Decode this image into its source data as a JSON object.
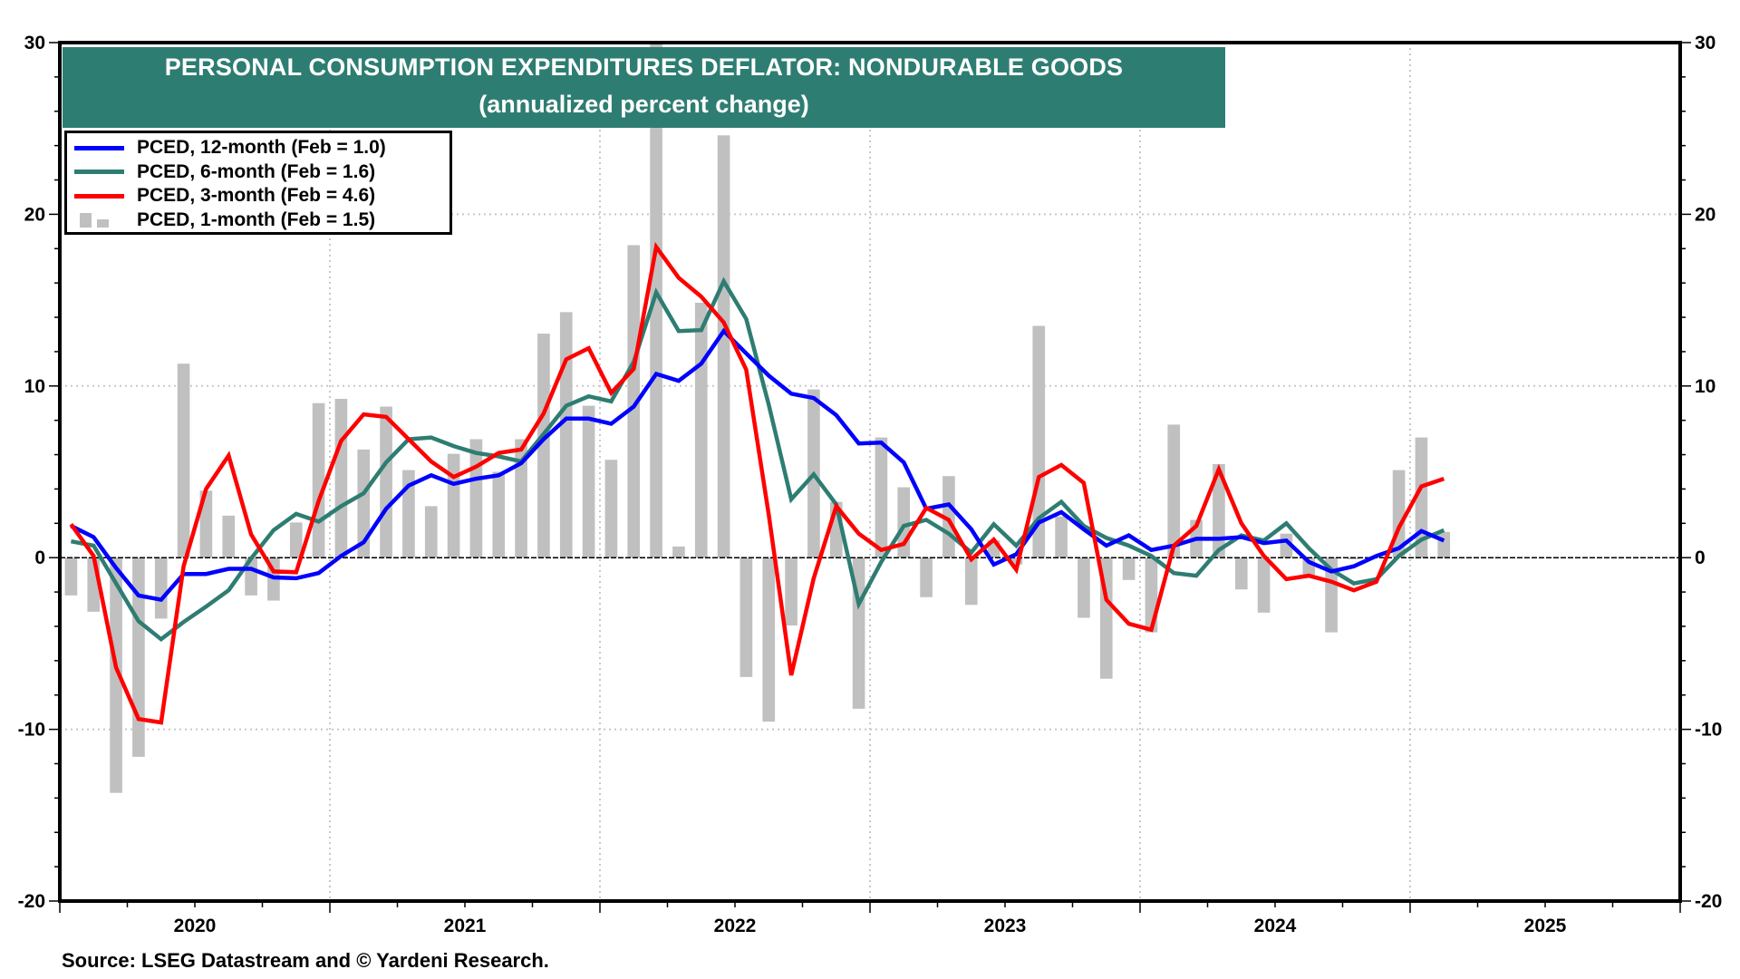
{
  "chart_data": {
    "type": "bar+line",
    "title": "PERSONAL CONSUMPTION EXPENDITURES DEFLATOR: NONDURABLE GOODS",
    "subtitle": "(annualized percent change)",
    "xlabel": "",
    "ylabel": "",
    "ylim": [
      -20,
      30
    ],
    "yticks": [
      -20,
      -10,
      0,
      10,
      20,
      30
    ],
    "ytick_labels": [
      "-20",
      "-10",
      "0",
      "10",
      "20",
      "30"
    ],
    "x_start": "2020-01",
    "x_end": "2025-12",
    "year_labels": [
      "2020",
      "2021",
      "2022",
      "2023",
      "2024",
      "2025"
    ],
    "grid": true,
    "legend_position": "top-left",
    "x": [
      "2020-01",
      "2020-02",
      "2020-03",
      "2020-04",
      "2020-05",
      "2020-06",
      "2020-07",
      "2020-08",
      "2020-09",
      "2020-10",
      "2020-11",
      "2020-12",
      "2021-01",
      "2021-02",
      "2021-03",
      "2021-04",
      "2021-05",
      "2021-06",
      "2021-07",
      "2021-08",
      "2021-09",
      "2021-10",
      "2021-11",
      "2021-12",
      "2022-01",
      "2022-02",
      "2022-03",
      "2022-04",
      "2022-05",
      "2022-06",
      "2022-07",
      "2022-08",
      "2022-09",
      "2022-10",
      "2022-11",
      "2022-12",
      "2023-01",
      "2023-02",
      "2023-03",
      "2023-04",
      "2023-05",
      "2023-06",
      "2023-07",
      "2023-08",
      "2023-09",
      "2023-10",
      "2023-11",
      "2023-12",
      "2024-01",
      "2024-02",
      "2024-03",
      "2024-04",
      "2024-05",
      "2024-06",
      "2024-07",
      "2024-08",
      "2024-09",
      "2024-10",
      "2024-11",
      "2024-12",
      "2025-01",
      "2025-02"
    ],
    "series": [
      {
        "name": "PCED, 1-month (Feb = 1.5)",
        "kind": "bar",
        "color": "#c0c0c0",
        "values": [
          -2.2,
          -3.15,
          -13.7,
          -11.6,
          -3.55,
          11.3,
          3.9,
          2.45,
          -2.2,
          -2.5,
          2.05,
          9.0,
          9.25,
          6.3,
          8.8,
          5.1,
          3.0,
          6.05,
          6.9,
          5.0,
          6.9,
          13.05,
          14.3,
          8.85,
          5.7,
          18.2,
          30.5,
          0.65,
          14.85,
          24.6,
          -6.95,
          -9.55,
          -3.95,
          9.8,
          3.25,
          -8.8,
          7.0,
          4.1,
          -2.3,
          4.75,
          -2.75,
          1.0,
          -0.4,
          13.5,
          2.4,
          -3.5,
          -7.05,
          -1.3,
          -4.35,
          7.75,
          2.2,
          5.45,
          -1.85,
          -3.2,
          1.4,
          -1.0,
          -4.35,
          -0.1,
          0.1,
          5.1,
          7.0,
          1.5
        ]
      },
      {
        "name": "PCED, 12-month (Feb = 1.0)",
        "kind": "line",
        "color": "#0000ff",
        "values": [
          1.85,
          1.2,
          -0.6,
          -2.2,
          -2.45,
          -0.95,
          -0.95,
          -0.65,
          -0.65,
          -1.15,
          -1.2,
          -0.9,
          0.1,
          0.9,
          2.85,
          4.2,
          4.8,
          4.3,
          4.6,
          4.8,
          5.5,
          6.9,
          8.1,
          8.1,
          7.8,
          8.8,
          10.7,
          10.3,
          11.3,
          13.2,
          11.9,
          10.6,
          9.55,
          9.3,
          8.3,
          6.65,
          6.7,
          5.55,
          2.85,
          3.1,
          1.65,
          -0.4,
          0.2,
          2.05,
          2.65,
          1.65,
          0.7,
          1.3,
          0.45,
          0.7,
          1.1,
          1.1,
          1.2,
          0.85,
          1.0,
          -0.25,
          -0.8,
          -0.5,
          0.1,
          0.55,
          1.55,
          1.0
        ]
      },
      {
        "name": "PCED, 6-month (Feb = 1.6)",
        "kind": "line",
        "color": "#2e7d72",
        "values": [
          0.95,
          0.7,
          -1.5,
          -3.7,
          -4.75,
          -3.75,
          -2.85,
          -1.9,
          -0.05,
          1.6,
          2.55,
          2.1,
          3.0,
          3.75,
          5.55,
          6.9,
          7.0,
          6.5,
          6.1,
          5.9,
          5.6,
          7.2,
          8.85,
          9.4,
          9.1,
          11.4,
          15.45,
          13.2,
          13.25,
          16.1,
          13.9,
          8.9,
          3.4,
          4.85,
          3.1,
          -2.7,
          -0.25,
          1.85,
          2.2,
          1.4,
          0.3,
          1.95,
          0.7,
          2.3,
          3.25,
          1.85,
          1.15,
          0.7,
          0.1,
          -0.9,
          -1.05,
          0.45,
          1.3,
          1.0,
          2.0,
          0.55,
          -0.7,
          -1.5,
          -1.25,
          0.1,
          1.05,
          1.6
        ]
      },
      {
        "name": "PCED, 3-month (Feb = 4.6)",
        "kind": "line",
        "color": "#ff0000",
        "values": [
          1.95,
          0.1,
          -6.4,
          -9.4,
          -9.6,
          -0.5,
          4.0,
          5.95,
          1.35,
          -0.8,
          -0.85,
          3.3,
          6.8,
          8.35,
          8.2,
          6.9,
          5.6,
          4.7,
          5.3,
          6.1,
          6.3,
          8.4,
          11.55,
          12.2,
          9.6,
          11.0,
          18.1,
          16.3,
          15.2,
          13.7,
          10.95,
          2.5,
          -6.85,
          -1.2,
          3.0,
          1.4,
          0.45,
          0.8,
          2.9,
          2.2,
          -0.1,
          1.05,
          -0.7,
          4.7,
          5.4,
          4.35,
          -2.45,
          -3.85,
          -4.2,
          0.7,
          1.85,
          5.15,
          2.0,
          0.1,
          -1.25,
          -1.05,
          -1.4,
          -1.9,
          -1.4,
          1.75,
          4.15,
          4.6
        ]
      }
    ],
    "legend": [
      {
        "label": "PCED, 12-month (Feb = 1.0)",
        "color": "#0000ff",
        "kind": "line"
      },
      {
        "label": "PCED, 6-month (Feb = 1.6)",
        "color": "#2e7d72",
        "kind": "line"
      },
      {
        "label": "PCED, 3-month (Feb = 4.6)",
        "color": "#ff0000",
        "kind": "line"
      },
      {
        "label": "PCED, 1-month (Feb = 1.5)",
        "color": "#c0c0c0",
        "kind": "bar"
      }
    ],
    "source": "Source: LSEG Datastream and © Yardeni Research."
  },
  "colors": {
    "title_background": "#2e7d72",
    "title_text": "#ffffff",
    "grid": "#c8c8c8"
  }
}
